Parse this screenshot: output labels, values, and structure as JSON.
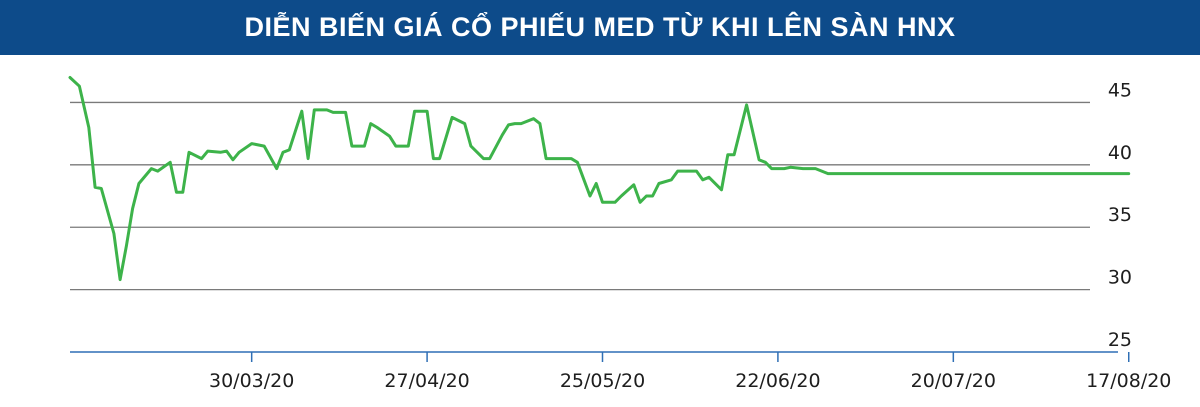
{
  "header": {
    "title": "DIỄN BIẾN GIÁ CỔ PHIẾU MED TỪ KHI LÊN SÀN HNX"
  },
  "colors": {
    "header_bg": "#0d4b8a",
    "line": "#3db34a",
    "grid": "#7a7a7a",
    "axis": "#2f6fb5",
    "text": "#1e1e1e"
  },
  "chart_data": {
    "type": "line",
    "title": "DIỄN BIẾN GIÁ CỔ PHIẾU MED TỪ KHI LÊN SÀN HNX",
    "xlabel": "",
    "ylabel": "",
    "ylim": [
      25,
      48
    ],
    "yticks": [
      25,
      30,
      35,
      40,
      45
    ],
    "grid": true,
    "xticks": [
      {
        "label": "30/03/20",
        "day": 29
      },
      {
        "label": "27/04/20",
        "day": 57
      },
      {
        "label": "25/05/20",
        "day": 85
      },
      {
        "label": "22/06/20",
        "day": 113
      },
      {
        "label": "20/07/20",
        "day": 141
      },
      {
        "label": "17/08/20",
        "day": 169
      }
    ],
    "x": [
      0,
      1.5,
      3,
      4,
      5,
      7,
      8,
      9,
      10,
      11,
      13,
      14,
      16,
      17,
      18,
      19,
      21,
      22,
      24,
      25,
      26,
      27,
      29,
      31,
      33,
      34,
      35,
      37,
      38,
      39,
      41,
      42,
      43,
      44,
      45,
      47,
      48,
      49,
      51,
      52,
      54,
      55,
      57,
      58,
      59,
      61,
      63,
      64,
      66,
      67,
      69,
      70,
      71,
      72,
      74,
      75,
      76,
      78,
      80,
      81,
      83,
      84,
      85,
      87,
      88,
      90,
      91,
      92,
      93,
      94,
      96,
      97,
      98,
      100,
      101,
      102,
      104,
      105,
      106,
      108,
      110,
      111,
      112,
      113,
      114,
      115,
      117,
      118,
      119,
      121,
      122,
      124,
      125,
      127,
      128,
      129,
      131,
      133,
      134,
      136,
      137,
      139,
      140,
      141,
      143,
      145,
      147,
      149,
      150,
      152,
      169
    ],
    "y": [
      47,
      46.3,
      43,
      38.2,
      38.1,
      34.5,
      30.8,
      33.5,
      36.5,
      38.5,
      39.7,
      39.5,
      40.2,
      37.8,
      37.8,
      41,
      40.5,
      41.1,
      41,
      41.1,
      40.4,
      41,
      41.7,
      41.5,
      39.7,
      41,
      41.2,
      44.3,
      40.5,
      44.4,
      44.4,
      44.2,
      44.2,
      44.2,
      41.5,
      41.5,
      43.3,
      43,
      42.3,
      41.5,
      41.5,
      44.3,
      44.3,
      40.5,
      40.5,
      43.8,
      43.3,
      41.5,
      40.5,
      40.5,
      42.4,
      43.2,
      43.3,
      43.3,
      43.7,
      43.3,
      40.5,
      40.5,
      40.5,
      40.2,
      37.5,
      38.5,
      37,
      37,
      37.5,
      38.4,
      37,
      37.5,
      37.5,
      38.5,
      38.8,
      39.5,
      39.5,
      39.5,
      38.8,
      39,
      38,
      40.8,
      40.8,
      44.8,
      40.4,
      40.2,
      39.7,
      39.7,
      39.7,
      39.8,
      39.7,
      39.7,
      39.7,
      39.3,
      39.3,
      39.3,
      39.3,
      39.3,
      39.3,
      39.3,
      39.3,
      39.3,
      39.3,
      39.3,
      39.3,
      39.3,
      39.3,
      39.3,
      39.3,
      39.3,
      39.3,
      39.3,
      39.3,
      39.3,
      39.3
    ]
  }
}
